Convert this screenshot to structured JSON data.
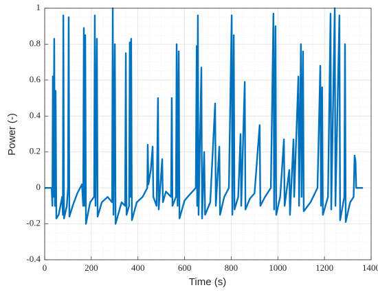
{
  "chart_data": {
    "type": "line",
    "xlabel": "Time (s)",
    "ylabel": "Power (-)",
    "xlim": [
      0,
      1400
    ],
    "ylim": [
      -0.4,
      1
    ],
    "xticks": [
      0,
      200,
      400,
      600,
      800,
      1000,
      1200,
      1400
    ],
    "yticks": [
      -0.4,
      -0.2,
      0,
      0.2,
      0.4,
      0.6,
      0.8,
      1
    ],
    "grid": true,
    "minor_grid": true,
    "x": [
      0,
      30,
      33,
      35,
      37,
      41,
      44,
      47,
      50,
      60,
      75,
      78,
      80,
      83,
      95,
      100,
      103,
      106,
      120,
      140,
      160,
      165,
      168,
      171,
      174,
      177,
      195,
      212,
      215,
      218,
      224,
      227,
      245,
      270,
      289,
      292,
      295,
      301,
      304,
      330,
      345,
      348,
      351,
      362,
      365,
      368,
      371,
      374,
      395,
      420,
      440,
      442,
      445,
      455,
      463,
      466,
      480,
      486,
      489,
      504,
      507,
      520,
      542,
      545,
      548,
      563,
      566,
      570,
      575,
      578,
      600,
      620,
      648,
      652,
      654,
      657,
      660,
      672,
      675,
      684,
      688,
      710,
      731,
      734,
      749,
      752,
      770,
      790,
      802,
      805,
      811,
      814,
      830,
      840,
      843,
      858,
      861,
      880,
      900,
      922,
      925,
      945,
      970,
      981,
      984,
      990,
      993,
      1010,
      1026,
      1029,
      1049,
      1052,
      1067,
      1070,
      1088,
      1091,
      1099,
      1102,
      1108,
      1111,
      1140,
      1170,
      1182,
      1185,
      1190,
      1193,
      1215,
      1226,
      1229,
      1244,
      1247,
      1264,
      1267,
      1285,
      1288,
      1291,
      1310,
      1325,
      1329,
      1333,
      1336,
      1365
    ],
    "series": [
      {
        "color": "#0072bd",
        "values": [
          0,
          0,
          -0.1,
          0.62,
          -0.05,
          0.83,
          -0.1,
          0.54,
          -0.17,
          -0.15,
          -0.05,
          -0.15,
          0.96,
          -0.17,
          -0.1,
          0,
          0.95,
          -0.16,
          -0.1,
          -0.03,
          0.02,
          -0.1,
          0.89,
          -0.1,
          0.85,
          -0.2,
          -0.08,
          -0.05,
          0.96,
          -0.1,
          0.83,
          -0.16,
          -0.08,
          -0.05,
          -0.08,
          1.0,
          -0.15,
          0.8,
          -0.2,
          -0.08,
          -0.1,
          0.75,
          -0.15,
          -0.1,
          0.81,
          -0.05,
          0.83,
          -0.18,
          -0.08,
          -0.05,
          0,
          0.24,
          0.02,
          0.1,
          0.23,
          -0.05,
          -0.1,
          0.5,
          -0.12,
          0.16,
          -0.08,
          -0.02,
          -0.05,
          0.5,
          -0.1,
          -0.05,
          0.8,
          -0.1,
          0.76,
          -0.17,
          -0.07,
          -0.04,
          0,
          0.79,
          -0.1,
          0.96,
          -0.15,
          0.67,
          -0.17,
          0.2,
          -0.15,
          -0.08,
          0.47,
          -0.1,
          0.23,
          -0.15,
          -0.05,
          0,
          0.96,
          -0.15,
          0.85,
          -0.12,
          -0.05,
          0.3,
          -0.1,
          0.59,
          -0.12,
          -0.06,
          -0.03,
          0.35,
          -0.1,
          -0.05,
          0,
          0.97,
          -0.12,
          0.9,
          -0.15,
          -0.05,
          0.27,
          -0.1,
          0.1,
          -0.15,
          0.27,
          -0.05,
          0.62,
          -0.1,
          0.8,
          -0.05,
          0.76,
          -0.13,
          -0.08,
          0,
          0.68,
          -0.1,
          0.56,
          -0.15,
          -0.05,
          0.97,
          -0.12,
          1.0,
          -0.1,
          0.96,
          -0.18,
          -0.05,
          0.8,
          -0.19,
          -0.08,
          -0.05,
          0.18,
          0.15,
          0,
          0
        ]
      }
    ]
  }
}
